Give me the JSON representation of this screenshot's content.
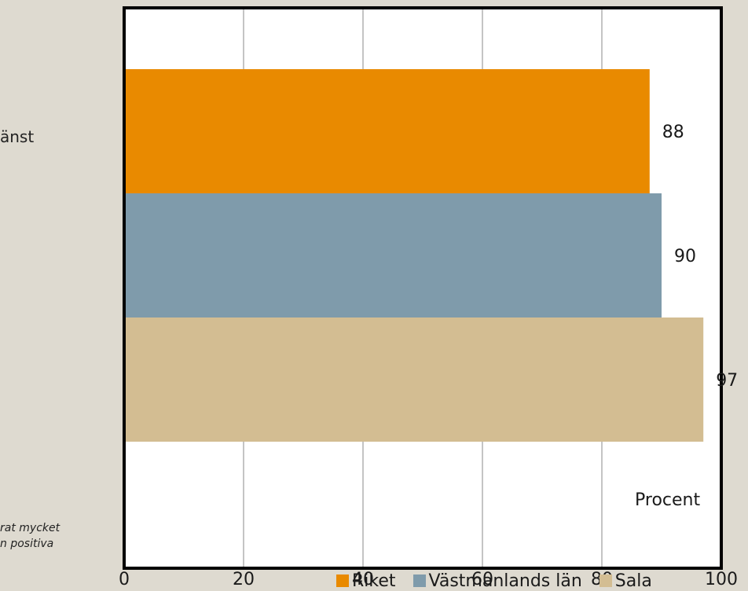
{
  "category_label": "änst",
  "note_lines": [
    "rat mycket",
    "n positiva"
  ],
  "chart_data": {
    "type": "bar",
    "orientation": "horizontal",
    "categories": [
      "änst"
    ],
    "series": [
      {
        "name": "Riket",
        "values": [
          88
        ],
        "color": "#e98a00"
      },
      {
        "name": "Västmanlands län",
        "values": [
          90
        ],
        "color": "#7f9bab"
      },
      {
        "name": "Sala",
        "values": [
          97
        ],
        "color": "#d3bd92"
      }
    ],
    "xlabel": "Procent",
    "xlim": [
      0,
      100
    ],
    "xticks": [
      0,
      20,
      40,
      60,
      80,
      100
    ],
    "grid": true,
    "legend": "bottom"
  }
}
